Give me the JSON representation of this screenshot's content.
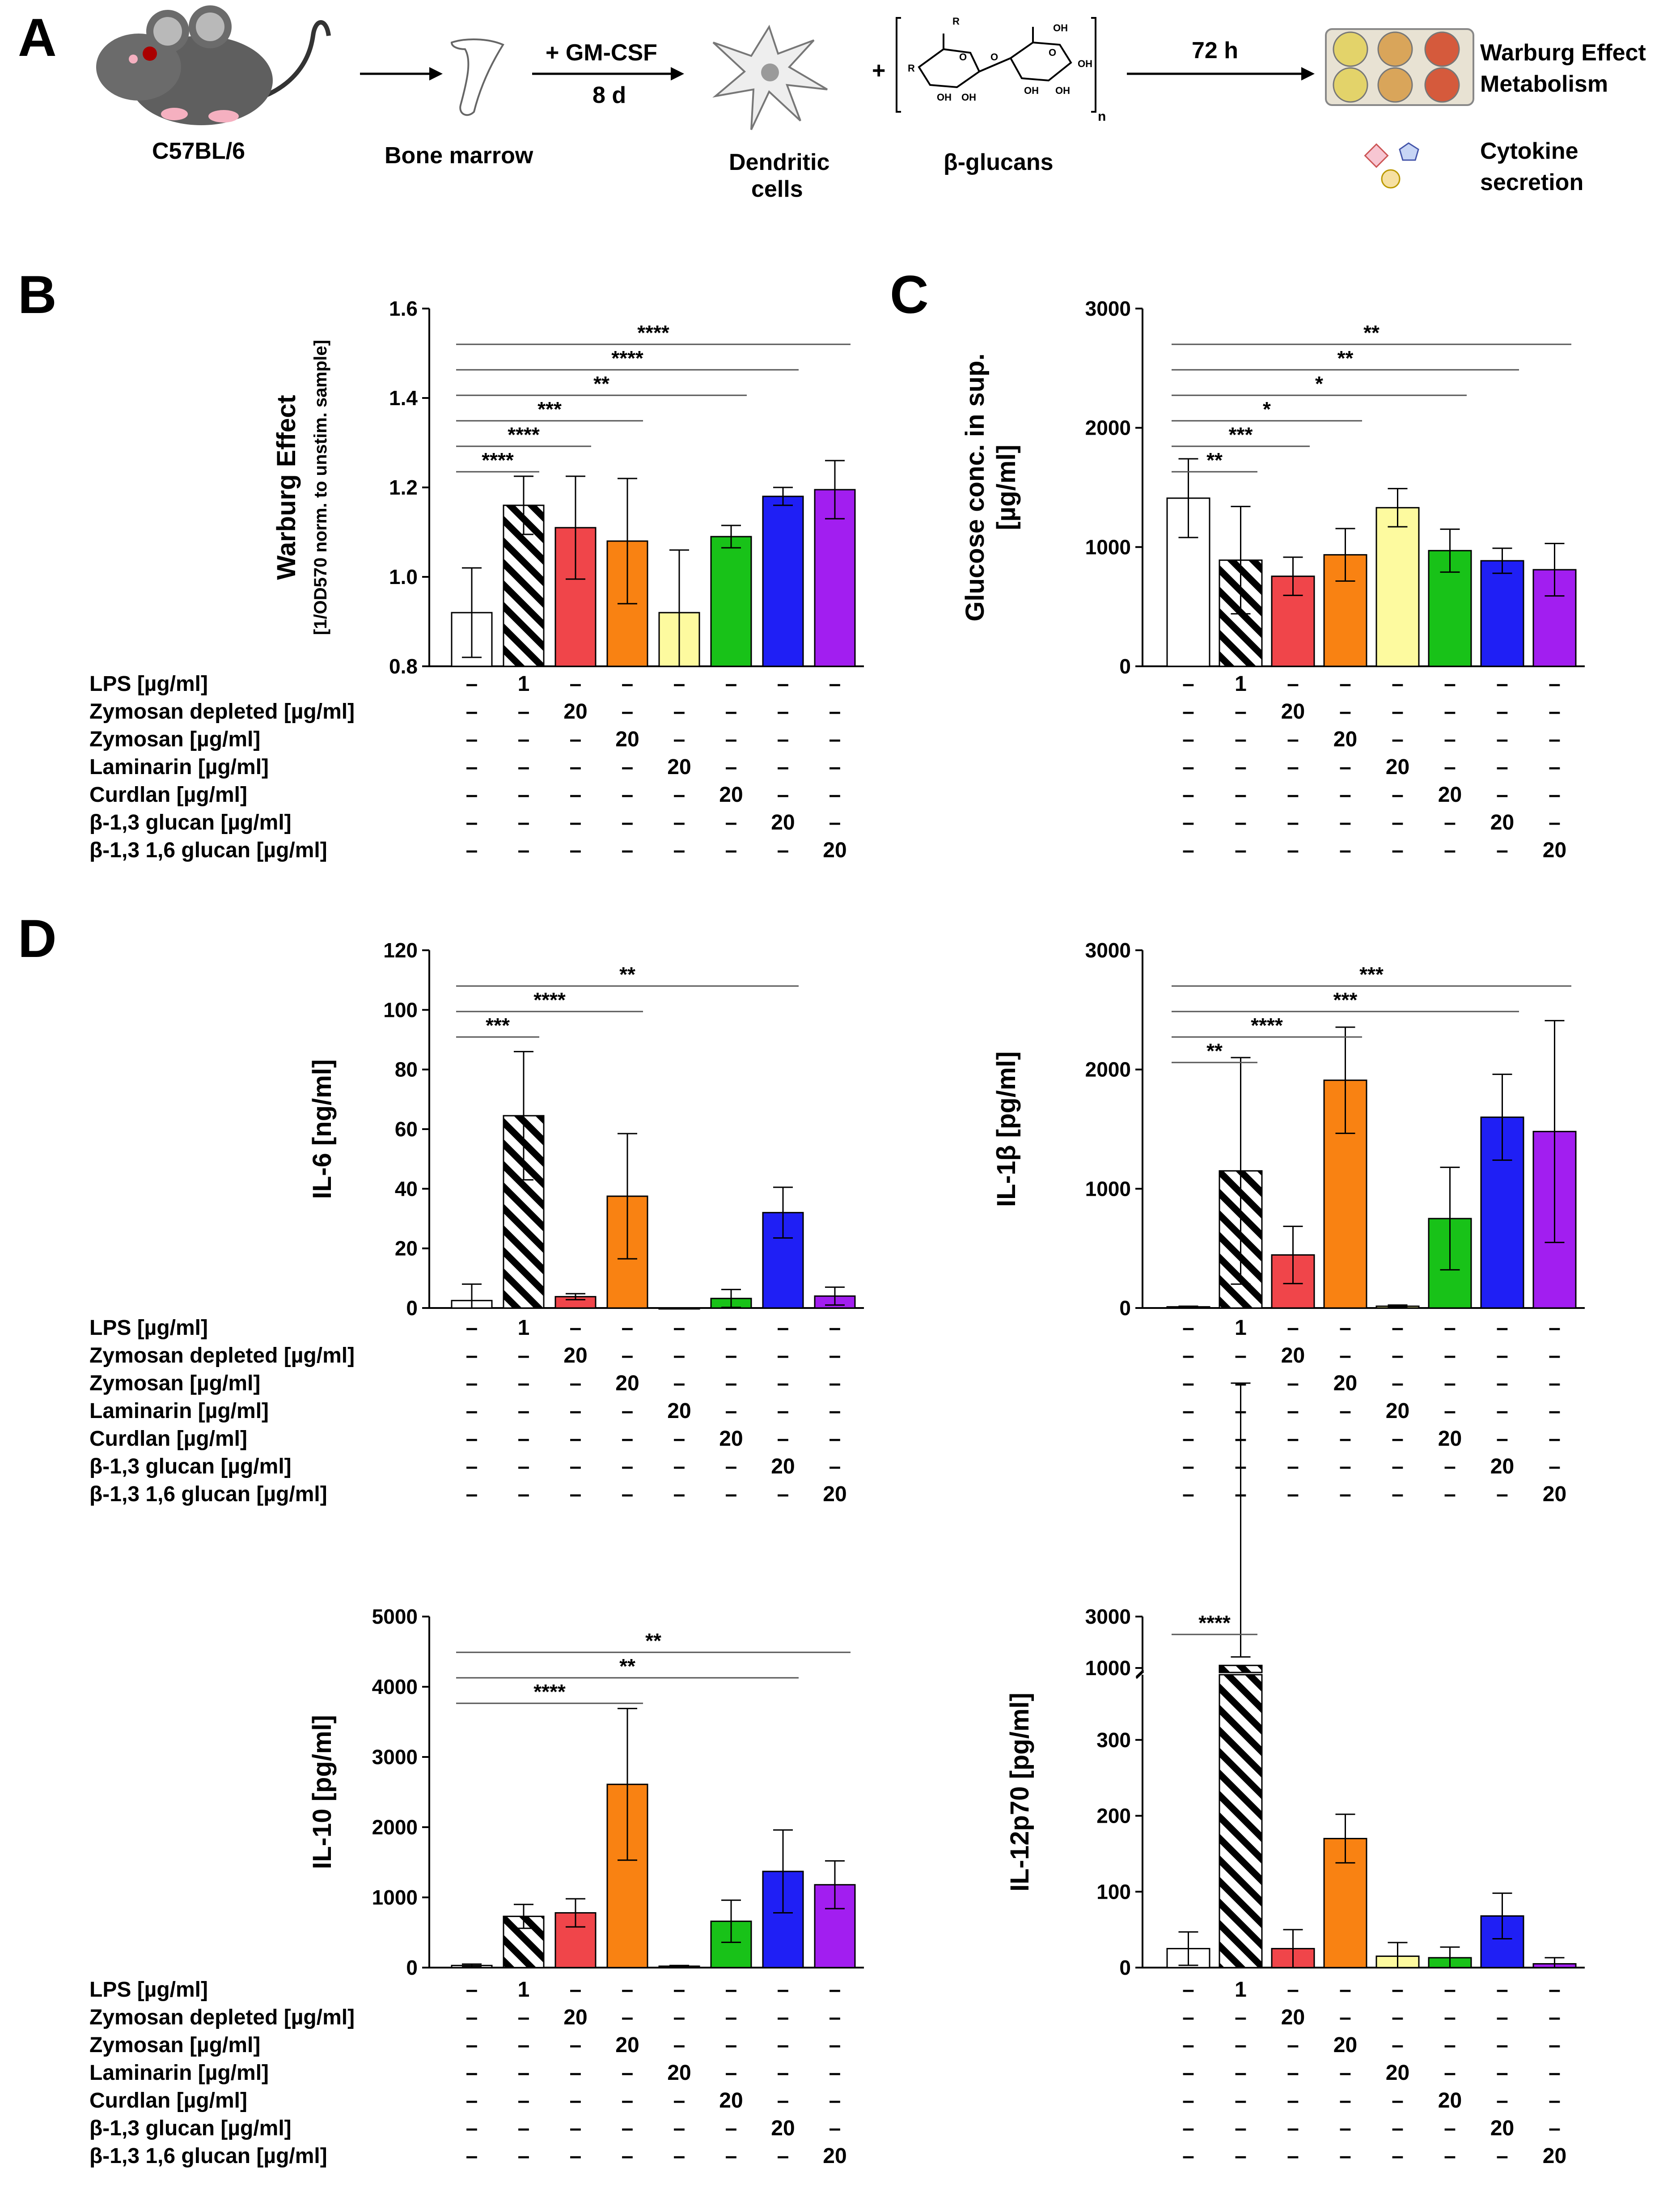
{
  "schematic": {
    "letter": "A",
    "mouse_label": "C57BL/6",
    "bone_label": "Bone marrow",
    "gmcsf_label": "+ GM-CSF",
    "days_label": "8 d",
    "dc_label_line1": "Dendritic",
    "dc_label_line2": "cells",
    "plus_sign": "+",
    "glucan_label": "β-glucans",
    "subscript_n": "n",
    "ring_labels": [
      "R",
      "R",
      "OH",
      "OH",
      "OH",
      "OH",
      "OH",
      "OH",
      "O",
      "O",
      "O"
    ],
    "time_label": "72 h",
    "out1_line1": "Warburg Effect",
    "out1_line2": "Metabolism",
    "out2_line1": "Cytokine",
    "out2_line2": "secretion",
    "colors": {
      "plate": "#e8e2d3",
      "well_yellow": "#e3d36a",
      "well_tan": "#d9a55a",
      "well_red": "#d55a3c"
    }
  },
  "treatments": {
    "rows": [
      "LPS [µg/ml]",
      "Zymosan depleted [µg/ml]",
      "Zymosan [µg/ml]",
      "Laminarin [µg/ml]",
      "Curdlan [µg/ml]",
      "β-1,3 glucan [µg/ml]",
      "β-1,3 1,6 glucan [µg/ml]"
    ],
    "dose_values": [
      "1",
      "20",
      "20",
      "20",
      "20",
      "20",
      "20"
    ],
    "dash": "–"
  },
  "bar_styles": [
    {
      "fill": "#ffffff",
      "hatch": false
    },
    {
      "fill": "#ffffff",
      "hatch": true
    },
    {
      "fill": "#f0454a",
      "hatch": false
    },
    {
      "fill": "#f98212",
      "hatch": false
    },
    {
      "fill": "#fdfa9f",
      "hatch": false
    },
    {
      "fill": "#18c218",
      "hatch": false
    },
    {
      "fill": "#1f1ff5",
      "hatch": false
    },
    {
      "fill": "#a21ef0",
      "hatch": false
    }
  ],
  "chart_data": [
    {
      "id": "B",
      "letter": "B",
      "type": "bar",
      "ylabel": "Warburg Effect",
      "ylabel2": "[1/OD570 norm. to unstim. sample]",
      "ylim": [
        0.8,
        1.6
      ],
      "yticks": [
        "0.8",
        "1.0",
        "1.2",
        "1.4",
        "1.6"
      ],
      "ytick_values": [
        0.8,
        1.0,
        1.2,
        1.4,
        1.6
      ],
      "values": [
        0.92,
        1.16,
        1.11,
        1.08,
        0.92,
        1.09,
        1.18,
        1.195
      ],
      "errors": [
        0.1,
        0.065,
        0.115,
        0.14,
        0.14,
        0.025,
        0.02,
        0.065
      ],
      "significance": [
        {
          "from": 0,
          "to": 1,
          "label": "****"
        },
        {
          "from": 0,
          "to": 2,
          "label": "****"
        },
        {
          "from": 0,
          "to": 3,
          "label": "***"
        },
        {
          "from": 0,
          "to": 5,
          "label": "**"
        },
        {
          "from": 0,
          "to": 6,
          "label": "****"
        },
        {
          "from": 0,
          "to": 7,
          "label": "****"
        }
      ]
    },
    {
      "id": "C",
      "letter": "C",
      "type": "bar",
      "ylabel": "Glucose conc. in sup.",
      "ylabel2": "[µg/ml]",
      "ylim": [
        0,
        3000
      ],
      "yticks": [
        "0",
        "1000",
        "2000",
        "3000"
      ],
      "ytick_values": [
        0,
        1000,
        2000,
        3000
      ],
      "values": [
        1410,
        890,
        755,
        935,
        1330,
        970,
        885,
        810
      ],
      "errors": [
        330,
        450,
        160,
        220,
        160,
        180,
        105,
        220
      ],
      "significance": [
        {
          "from": 0,
          "to": 1,
          "label": "**"
        },
        {
          "from": 0,
          "to": 2,
          "label": "***"
        },
        {
          "from": 0,
          "to": 3,
          "label": "*"
        },
        {
          "from": 0,
          "to": 5,
          "label": "*"
        },
        {
          "from": 0,
          "to": 6,
          "label": "**"
        },
        {
          "from": 0,
          "to": 7,
          "label": "**"
        }
      ]
    },
    {
      "id": "D1",
      "letter": "D",
      "type": "bar",
      "ylabel": "IL-6 [ng/ml]",
      "ylabel2": "",
      "ylim": [
        0,
        120
      ],
      "yticks": [
        "0",
        "20",
        "40",
        "60",
        "80",
        "100",
        "120"
      ],
      "ytick_values": [
        0,
        20,
        40,
        60,
        80,
        100,
        120
      ],
      "values": [
        2.5,
        64.5,
        3.8,
        37.5,
        0,
        3.2,
        32,
        4
      ],
      "errors": [
        5.5,
        21.5,
        1.0,
        21,
        0,
        3,
        8.5,
        3
      ],
      "significance": [
        {
          "from": 0,
          "to": 1,
          "label": "***"
        },
        {
          "from": 0,
          "to": 3,
          "label": "****"
        },
        {
          "from": 0,
          "to": 6,
          "label": "**"
        }
      ]
    },
    {
      "id": "D2",
      "letter": "",
      "type": "bar",
      "ylabel": "IL-1β [pg/ml]",
      "ylabel2": "",
      "ylim": [
        0,
        3000
      ],
      "yticks": [
        "0",
        "1000",
        "2000",
        "3000"
      ],
      "ytick_values": [
        0,
        1000,
        2000,
        3000
      ],
      "values": [
        10,
        1150,
        445,
        1910,
        15,
        750,
        1600,
        1480
      ],
      "errors": [
        5,
        950,
        240,
        445,
        10,
        430,
        360,
        930
      ],
      "significance": [
        {
          "from": 0,
          "to": 1,
          "label": "**"
        },
        {
          "from": 0,
          "to": 3,
          "label": "****"
        },
        {
          "from": 0,
          "to": 6,
          "label": "***"
        },
        {
          "from": 0,
          "to": 7,
          "label": "***"
        }
      ]
    },
    {
      "id": "D3",
      "letter": "",
      "type": "bar",
      "ylabel": "IL-10 [pg/ml]",
      "ylabel2": "",
      "ylim": [
        0,
        5000
      ],
      "yticks": [
        "0",
        "1000",
        "2000",
        "3000",
        "4000",
        "5000"
      ],
      "ytick_values": [
        0,
        1000,
        2000,
        3000,
        4000,
        5000
      ],
      "values": [
        30,
        730,
        780,
        2610,
        20,
        660,
        1370,
        1180
      ],
      "errors": [
        20,
        170,
        200,
        1080,
        10,
        300,
        590,
        340
      ],
      "significance": [
        {
          "from": 0,
          "to": 3,
          "label": "****"
        },
        {
          "from": 0,
          "to": 6,
          "label": "**"
        },
        {
          "from": 0,
          "to": 7,
          "label": "**"
        }
      ]
    },
    {
      "id": "D4",
      "letter": "",
      "type": "bar",
      "broken_axis": true,
      "ylabel": "IL-12p70 [pg/ml]",
      "ylabel2": "",
      "ylim_lower": [
        0,
        380
      ],
      "ylim_upper": [
        1000,
        3000
      ],
      "yticks": [
        "0",
        "100",
        "200",
        "300",
        "1000",
        "3000"
      ],
      "ytick_values": [
        0,
        100,
        200,
        300,
        1000,
        3000
      ],
      "values": [
        25,
        1100,
        25,
        170,
        15,
        13,
        68,
        5
      ],
      "errors": [
        22,
        330,
        25,
        32,
        18,
        14,
        30,
        8
      ],
      "significance": [
        {
          "from": 0,
          "to": 1,
          "label": "****"
        }
      ]
    }
  ]
}
